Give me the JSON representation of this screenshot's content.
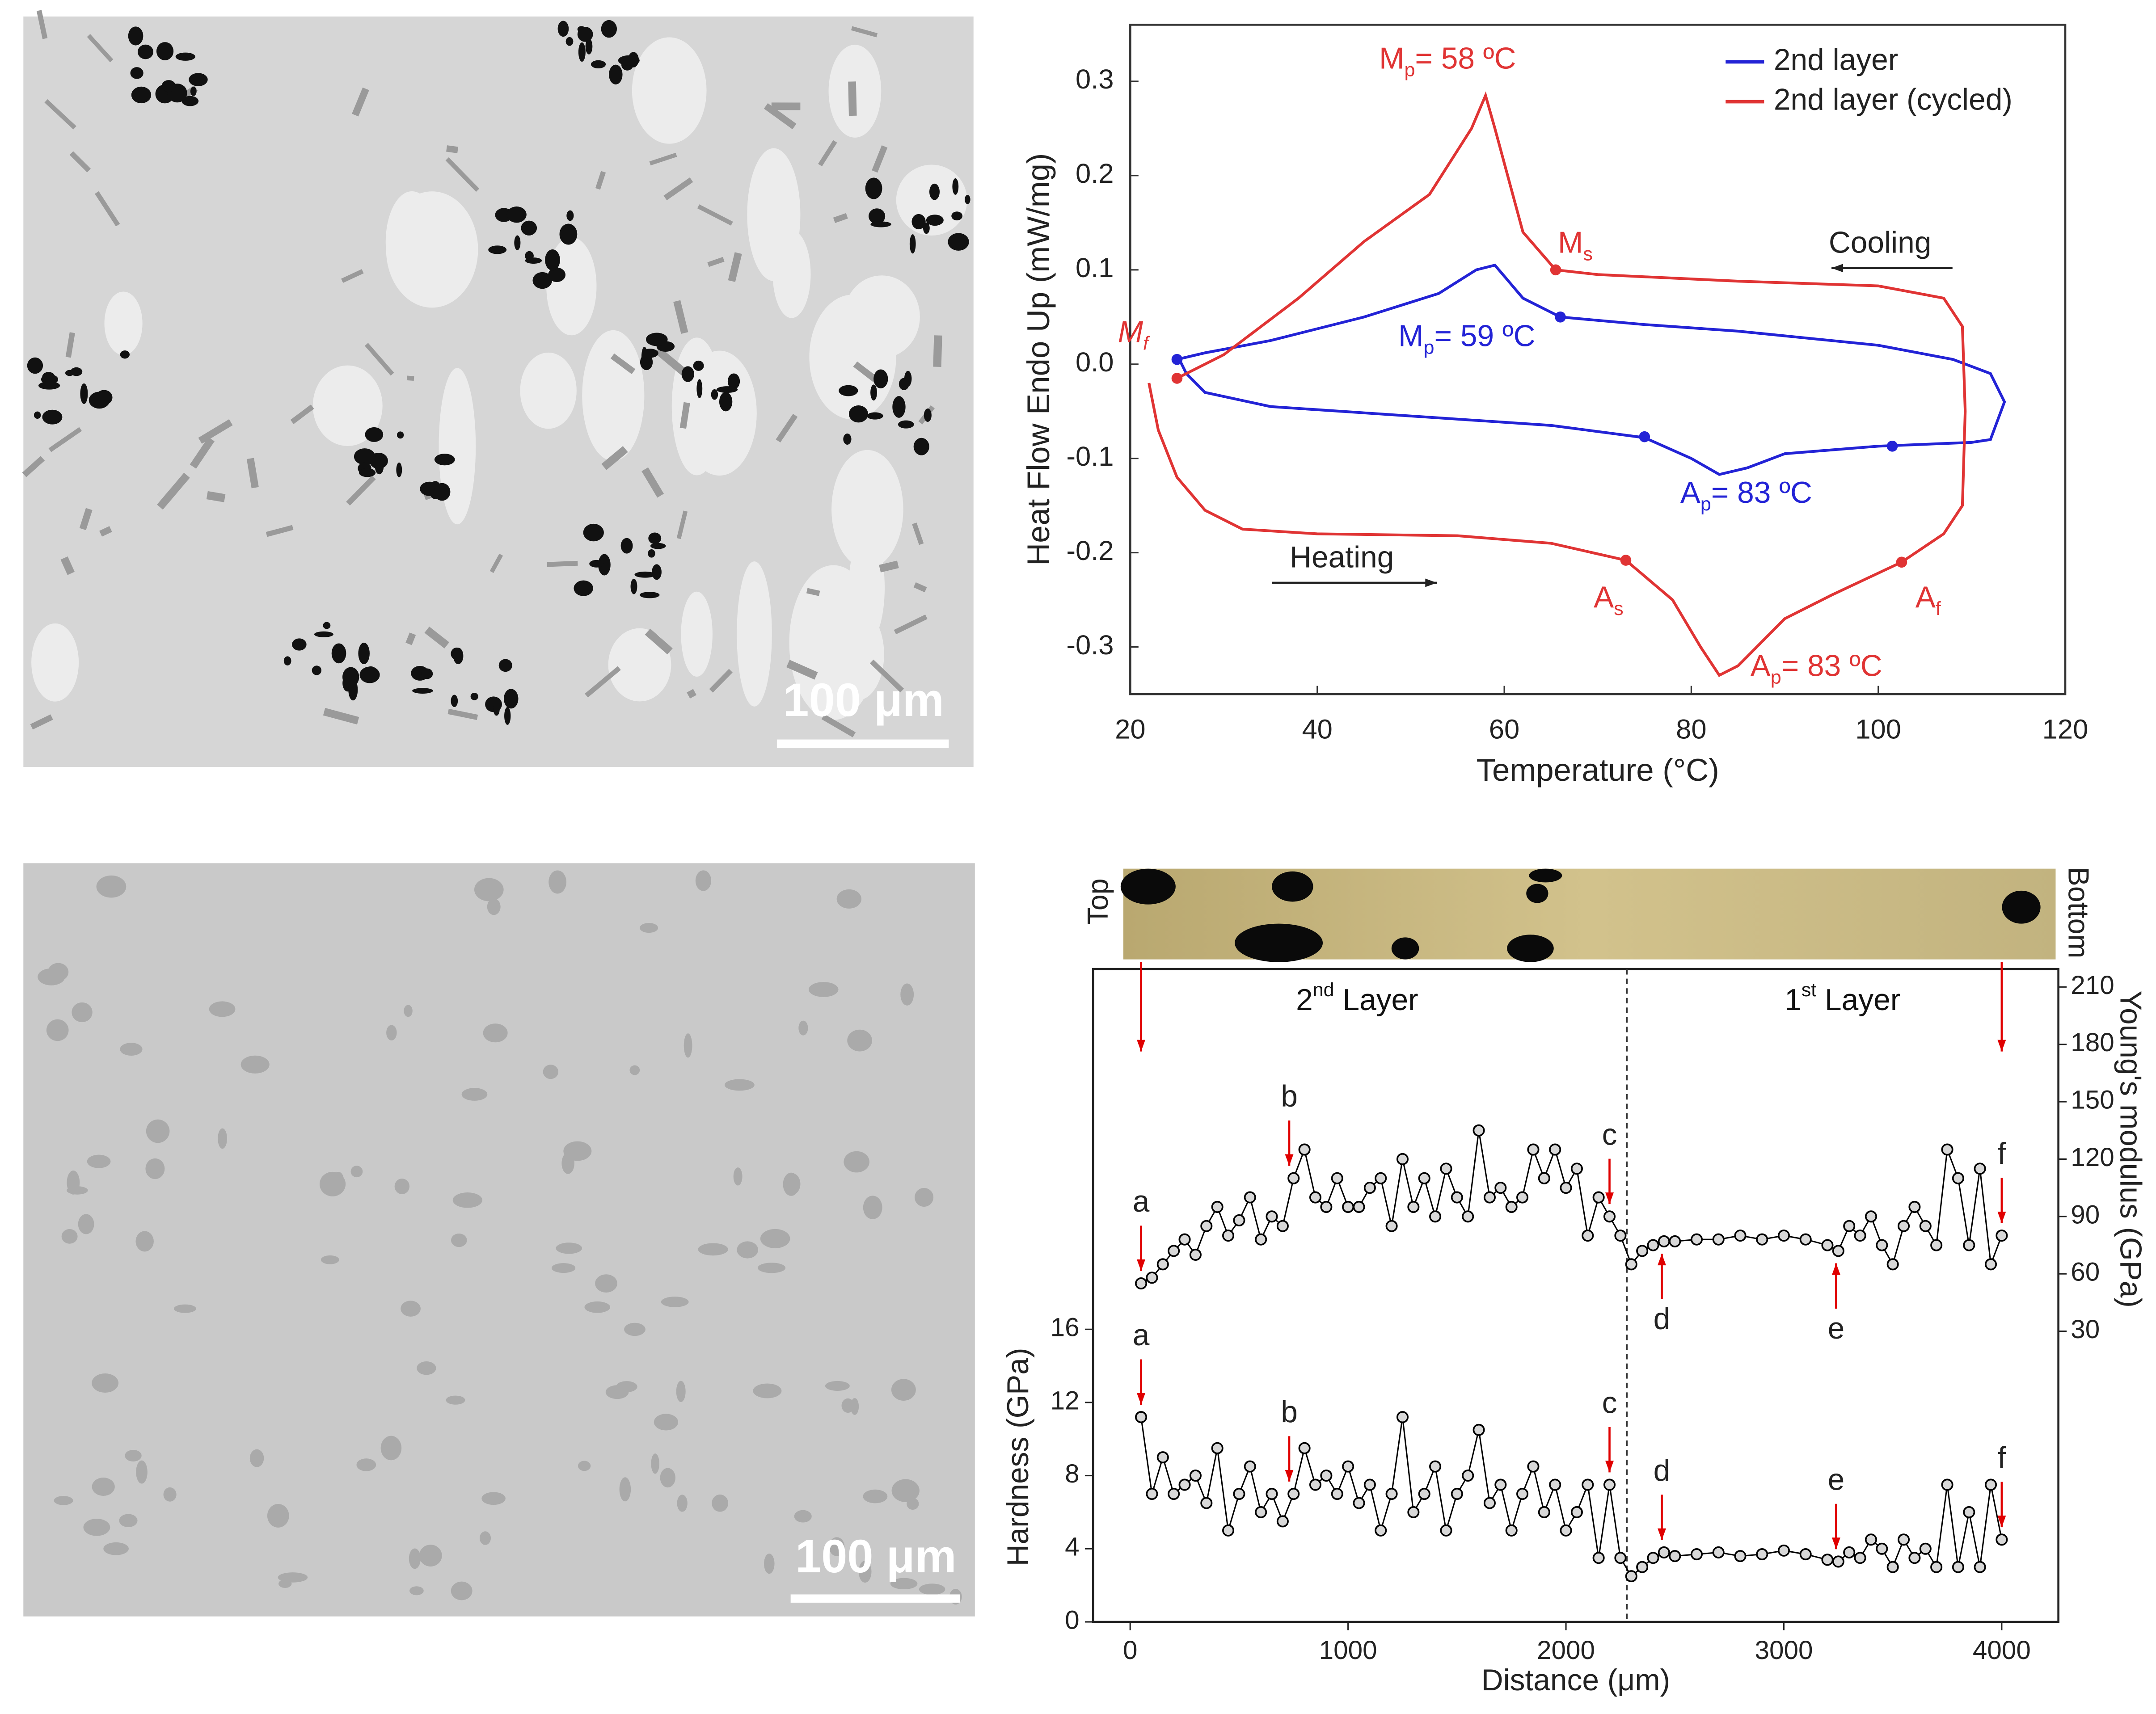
{
  "micrographs": [
    {
      "scale_bar": "100 μm"
    },
    {
      "scale_bar": "100 μm"
    }
  ],
  "chart_data": [
    {
      "type": "line",
      "xlabel": "Temperature (°C)",
      "ylabel": "Heat Flow Endo Up (mW/mg)",
      "xlim": [
        20,
        120
      ],
      "xticks": [
        20,
        40,
        60,
        80,
        100,
        120
      ],
      "ylim": [
        -0.35,
        0.36
      ],
      "yticks": [
        -0.3,
        -0.2,
        -0.1,
        {
          "value": 0,
          "label": "0.0"
        },
        0.1,
        0.2,
        0.3
      ],
      "legend": "upper right",
      "series": [
        {
          "name": "2nd layer",
          "color": "#2323d6",
          "x": [
            25,
            26,
            28,
            35,
            50,
            65,
            75,
            80,
            83,
            86,
            90,
            100,
            105,
            110,
            112,
            113.5,
            112,
            108,
            100,
            85,
            75,
            66,
            62,
            59,
            57,
            53,
            45,
            35,
            28,
            25
          ],
          "values": [
            0.01,
            -0.01,
            -0.03,
            -0.045,
            -0.055,
            -0.065,
            -0.078,
            -0.1,
            -0.117,
            -0.11,
            -0.095,
            -0.087,
            -0.085,
            -0.083,
            -0.08,
            -0.04,
            -0.01,
            0.005,
            0.02,
            0.035,
            0.042,
            0.05,
            0.07,
            0.105,
            0.1,
            0.075,
            0.05,
            0.025,
            0.012,
            0.005
          ]
        },
        {
          "name": "2nd layer (cycled)",
          "color": "#e03434",
          "x": [
            22,
            23,
            25,
            28,
            32,
            40,
            55,
            65,
            73,
            78,
            81,
            83,
            85,
            90,
            95,
            102.5,
            107,
            109,
            109.3,
            109,
            107,
            100,
            85,
            70,
            65.5,
            62,
            59,
            58,
            56.5,
            52,
            45,
            38,
            30,
            25
          ],
          "values": [
            -0.02,
            -0.07,
            -0.12,
            -0.155,
            -0.175,
            -0.18,
            -0.182,
            -0.19,
            -0.208,
            -0.25,
            -0.3,
            -0.33,
            -0.32,
            -0.27,
            -0.245,
            -0.21,
            -0.18,
            -0.15,
            -0.05,
            0.04,
            0.07,
            0.083,
            0.088,
            0.095,
            0.1,
            0.14,
            0.25,
            0.285,
            0.25,
            0.18,
            0.13,
            0.07,
            0.01,
            -0.015
          ]
        }
      ],
      "points": [
        {
          "x": 25,
          "y": 0.005,
          "color": "#2323d6"
        },
        {
          "x": 66,
          "y": 0.05,
          "color": "#2323d6"
        },
        {
          "x": 75,
          "y": -0.077,
          "color": "#2323d6"
        },
        {
          "x": 101.5,
          "y": -0.087,
          "color": "#2323d6"
        },
        {
          "x": 25,
          "y": -0.015,
          "color": "#e03434"
        },
        {
          "x": 65.5,
          "y": 0.1,
          "color": "#e03434"
        },
        {
          "x": 73,
          "y": -0.208,
          "color": "#e03434"
        },
        {
          "x": 102.5,
          "y": -0.21,
          "color": "#e03434"
        }
      ],
      "annotations": [
        {
          "main": "M",
          "sub": "p",
          "rest": "= 58 ºC",
          "color": "#e03434"
        },
        {
          "main": "M",
          "sub": "s",
          "color": "#e03434"
        },
        {
          "main": "M",
          "sub": "f",
          "color": "#e03434"
        },
        {
          "main": "M",
          "sub": "p",
          "rest": "= 59 ºC",
          "color": "#2323d6"
        },
        {
          "main": "A",
          "sub": "p",
          "rest": "= 83 ºC",
          "color": "#2323d6"
        },
        {
          "main": "A",
          "sub": "s",
          "color": "#e03434"
        },
        {
          "main": "A",
          "sub": "f",
          "color": "#e03434"
        },
        {
          "main": "A",
          "sub": "p",
          "rest": "= 83 ºC",
          "color": "#e03434"
        },
        {
          "main": "Cooling",
          "color": "#222222"
        },
        {
          "main": "Heating",
          "color": "#222222"
        }
      ]
    },
    {
      "type": "line",
      "markers": true,
      "xlabel": "Distance (μm)",
      "ylabel": "Hardness (GPa)",
      "y2label": "Young's modulus (GPa)",
      "xlim": [
        -170,
        4260
      ],
      "xticks": [
        0,
        1000,
        2000,
        3000,
        4000
      ],
      "ylim": [
        0,
        35.7
      ],
      "yticks": [
        0,
        4,
        8,
        12,
        16
      ],
      "y2lim": [
        -122,
        219.4
      ],
      "y2ticks": [
        30,
        60,
        90,
        120,
        150,
        180,
        210
      ],
      "divider_x": 2280,
      "strip_labels": [
        "Top",
        "Bottom"
      ],
      "regions": [
        {
          "main": "2",
          "sup": "nd",
          "rest": " Layer"
        },
        {
          "main": "1",
          "sup": "st",
          "rest": " Layer"
        }
      ],
      "pointer_color": "#e00000",
      "x": [
        50,
        100,
        150,
        200,
        250,
        300,
        350,
        400,
        450,
        500,
        550,
        600,
        650,
        700,
        750,
        800,
        850,
        900,
        950,
        1000,
        1050,
        1100,
        1150,
        1200,
        1250,
        1300,
        1350,
        1400,
        1450,
        1500,
        1550,
        1600,
        1650,
        1700,
        1750,
        1800,
        1850,
        1900,
        1950,
        2000,
        2050,
        2100,
        2150,
        2200,
        2250,
        2300,
        2350,
        2400,
        2450,
        2500,
        2600,
        2700,
        2800,
        2900,
        3000,
        3100,
        3200,
        3250,
        3300,
        3350,
        3400,
        3450,
        3500,
        3550,
        3600,
        3650,
        3700,
        3750,
        3800,
        3850,
        3900,
        3950,
        4000
      ],
      "series": [
        {
          "axis": "y2",
          "color": "#000000",
          "values": [
            55,
            58,
            65,
            72,
            78,
            70,
            85,
            95,
            80,
            88,
            100,
            78,
            90,
            85,
            110,
            125,
            100,
            95,
            110,
            95,
            95,
            105,
            110,
            85,
            120,
            95,
            110,
            90,
            115,
            100,
            90,
            135,
            100,
            105,
            95,
            100,
            125,
            110,
            125,
            105,
            115,
            80,
            100,
            90,
            80,
            65,
            72,
            75,
            77,
            77,
            78,
            78,
            80,
            78,
            80,
            78,
            75,
            72,
            85,
            80,
            90,
            75,
            65,
            85,
            95,
            85,
            75,
            125,
            110,
            75,
            115,
            65,
            80
          ],
          "pointers": [
            {
              "label": "a",
              "x": 50
            },
            {
              "label": "b",
              "x": 730
            },
            {
              "label": "c",
              "x": 2200
            },
            {
              "label": "d",
              "x": 2440
            },
            {
              "label": "e",
              "x": 3240
            },
            {
              "label": "f",
              "x": 4000
            }
          ]
        },
        {
          "color": "#000000",
          "values": [
            11.2,
            7,
            9,
            7,
            7.5,
            8,
            6.5,
            9.5,
            5,
            7,
            8.5,
            6,
            7,
            5.5,
            7,
            9.5,
            7.5,
            8,
            7,
            8.5,
            6.5,
            7.5,
            5,
            7,
            11.2,
            6,
            7,
            8.5,
            5,
            7,
            8,
            10.5,
            6.5,
            7.5,
            5,
            7,
            8.5,
            6,
            7.5,
            5,
            6,
            7.5,
            3.5,
            7.5,
            3.5,
            2.5,
            3,
            3.5,
            3.8,
            3.6,
            3.7,
            3.8,
            3.6,
            3.7,
            3.9,
            3.7,
            3.4,
            3.3,
            3.8,
            3.5,
            4.5,
            4,
            3,
            4.5,
            3.5,
            4,
            3,
            7.5,
            3,
            6,
            3,
            7.5,
            4.5
          ],
          "pointers": [
            {
              "label": "a",
              "x": 50
            },
            {
              "label": "b",
              "x": 730
            },
            {
              "label": "c",
              "x": 2200
            },
            {
              "label": "d",
              "x": 2440
            },
            {
              "label": "e",
              "x": 3240
            },
            {
              "label": "f",
              "x": 4000
            }
          ]
        }
      ]
    }
  ]
}
